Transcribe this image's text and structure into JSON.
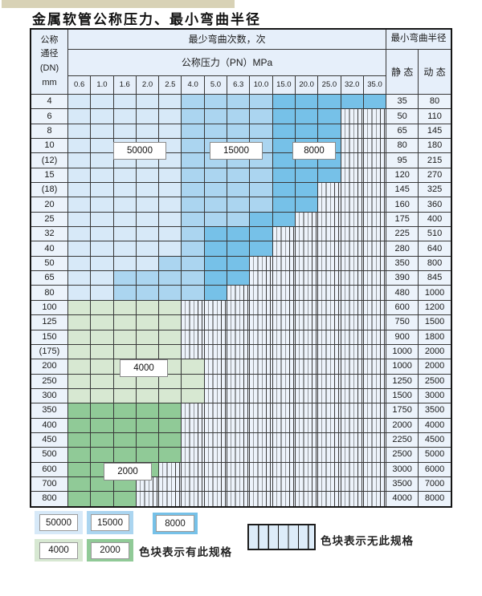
{
  "title": "金属软管公称压力、最小弯曲半径",
  "table": {
    "corner_lines": [
      "公称",
      "通径",
      "(DN)",
      "mm"
    ],
    "bend_cycles_header": "最少弯曲次数，次",
    "pressure_header": "公称压力（PN）MPa",
    "radius_header": "最小弯曲半径",
    "static_header": "静 态",
    "dynamic_header": "动 态",
    "pressure_cols": [
      "0.6",
      "1.0",
      "1.6",
      "2.0",
      "2.5",
      "4.0",
      "5.0",
      "6.3",
      "10.0",
      "15.0",
      "20.0",
      "25.0",
      "32.0",
      "35.0"
    ],
    "zone_values": {
      "L": "50000",
      "M": "15000",
      "D": "8000",
      "G": "4000",
      "E": "2000",
      "-": "无此规格"
    },
    "rows": [
      {
        "dn": "4",
        "zones": "LLLLLMMMMDDDDD",
        "static": "35",
        "dynamic": "80"
      },
      {
        "dn": "6",
        "zones": "LLLLLMMMMDDD--",
        "static": "50",
        "dynamic": "110"
      },
      {
        "dn": "8",
        "zones": "LLLLLMMMMDDD--",
        "static": "65",
        "dynamic": "145"
      },
      {
        "dn": "10",
        "zones": "LLLLLMMMMDDD--",
        "static": "80",
        "dynamic": "180"
      },
      {
        "dn": "(12)",
        "zones": "LLLLLMMMMDDD--",
        "static": "95",
        "dynamic": "215"
      },
      {
        "dn": "15",
        "zones": "LLLLLMMMMDDD--",
        "static": "120",
        "dynamic": "270"
      },
      {
        "dn": "(18)",
        "zones": "LLLLLMMMMDD---",
        "static": "145",
        "dynamic": "325"
      },
      {
        "dn": "20",
        "zones": "LLLLLMMMMDD---",
        "static": "160",
        "dynamic": "360"
      },
      {
        "dn": "25",
        "zones": "LLLLLMMMDD----",
        "static": "175",
        "dynamic": "400"
      },
      {
        "dn": "32",
        "zones": "LLLLLMDDD-----",
        "static": "225",
        "dynamic": "510"
      },
      {
        "dn": "40",
        "zones": "LLLLLMDDD-----",
        "static": "280",
        "dynamic": "640"
      },
      {
        "dn": "50",
        "zones": "LLLLMMDD------",
        "static": "350",
        "dynamic": "800"
      },
      {
        "dn": "65",
        "zones": "LLMMMMDD------",
        "static": "390",
        "dynamic": "845"
      },
      {
        "dn": "80",
        "zones": "LLMMMMD-------",
        "static": "480",
        "dynamic": "1000"
      },
      {
        "dn": "100",
        "zones": "GGGGG---------",
        "static": "600",
        "dynamic": "1200"
      },
      {
        "dn": "125",
        "zones": "GGGGG---------",
        "static": "750",
        "dynamic": "1500"
      },
      {
        "dn": "150",
        "zones": "GGGGG---------",
        "static": "900",
        "dynamic": "1800"
      },
      {
        "dn": "(175)",
        "zones": "GGGGG---------",
        "static": "1000",
        "dynamic": "2000"
      },
      {
        "dn": "200",
        "zones": "GGGGGG--------",
        "static": "1000",
        "dynamic": "2000"
      },
      {
        "dn": "250",
        "zones": "GGGGGG--------",
        "static": "1250",
        "dynamic": "2500"
      },
      {
        "dn": "300",
        "zones": "GGGGGG--------",
        "static": "1500",
        "dynamic": "3000"
      },
      {
        "dn": "350",
        "zones": "EEEEE---------",
        "static": "1750",
        "dynamic": "3500"
      },
      {
        "dn": "400",
        "zones": "EEEEE---------",
        "static": "2000",
        "dynamic": "4000"
      },
      {
        "dn": "450",
        "zones": "EEEEE---------",
        "static": "2250",
        "dynamic": "4500"
      },
      {
        "dn": "500",
        "zones": "EEEEE---------",
        "static": "2500",
        "dynamic": "5000"
      },
      {
        "dn": "600",
        "zones": "EEEE----------",
        "static": "3000",
        "dynamic": "6000"
      },
      {
        "dn": "700",
        "zones": "EEE-----------",
        "static": "3500",
        "dynamic": "7000"
      },
      {
        "dn": "800",
        "zones": "EEE-----------",
        "static": "4000",
        "dynamic": "8000"
      }
    ]
  },
  "overlay_labels": [
    {
      "id": "lbl-50000",
      "text": "50000"
    },
    {
      "id": "lbl-15000",
      "text": "15000"
    },
    {
      "id": "lbl-8000",
      "text": "8000"
    },
    {
      "id": "lbl-4000",
      "text": "4000"
    },
    {
      "id": "lbl-2000",
      "text": "2000"
    }
  ],
  "legend": {
    "swatches": [
      {
        "id": "sw-50000",
        "text": "50000",
        "zone": "L"
      },
      {
        "id": "sw-15000",
        "text": "15000",
        "zone": "M"
      },
      {
        "id": "sw-8000",
        "text": "8000",
        "zone": "D"
      },
      {
        "id": "sw-4000",
        "text": "4000",
        "zone": "G"
      },
      {
        "id": "sw-2000",
        "text": "2000",
        "zone": "E"
      }
    ],
    "has_spec_note": "色块表示有此规格",
    "no_spec_note": "色块表示无此规格"
  },
  "colors": {
    "c50000": "#d7e9f8",
    "c15000": "#abd5f0",
    "c8000": "#76c1e8",
    "c4000": "#d7e8d2",
    "c2000": "#90ca97",
    "stripe_bg": "#edf3fb",
    "header_bg": "#e6effa",
    "label_bg": "#ecf3fb",
    "grid": "#383838"
  }
}
